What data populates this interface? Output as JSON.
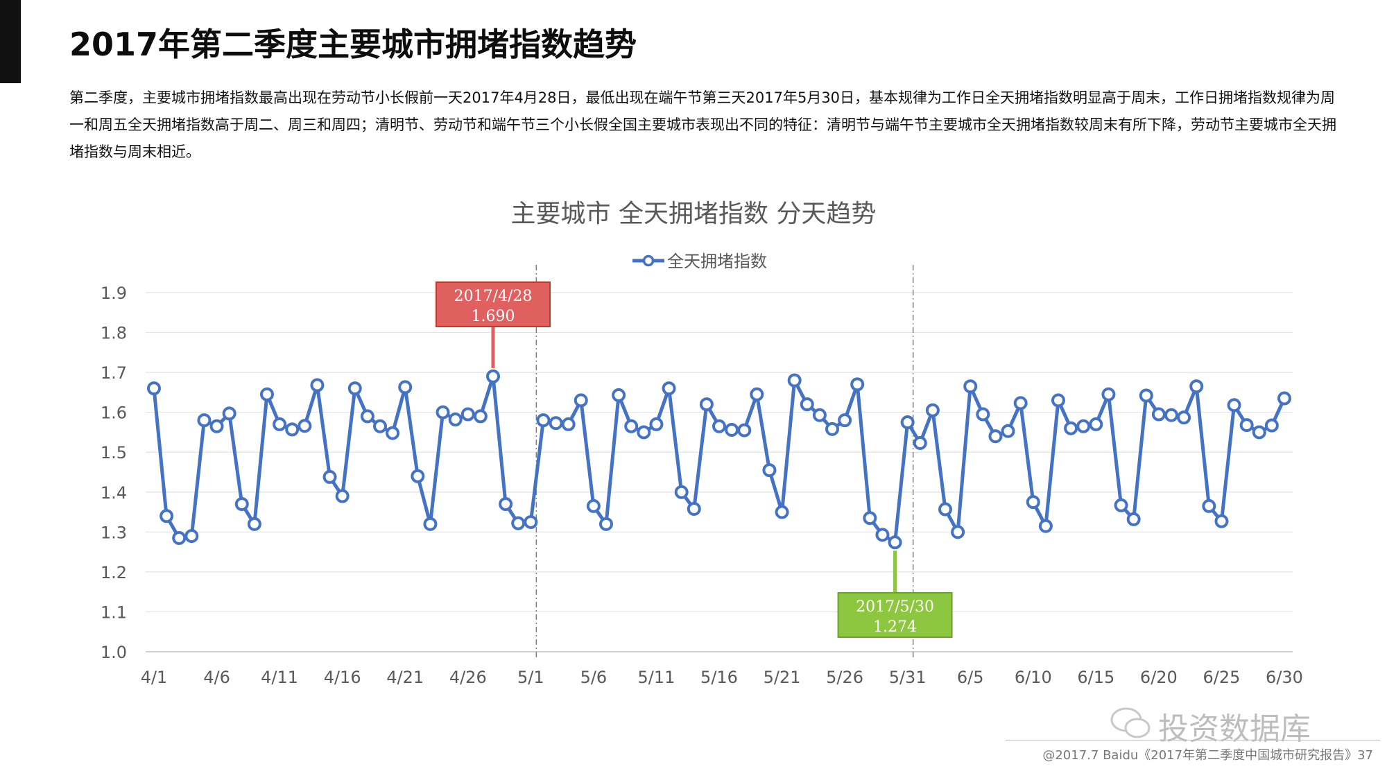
{
  "page": {
    "title": "2017年第二季度主要城市拥堵指数趋势",
    "summary": "第二季度，主要城市拥堵指数最高出现在劳动节小长假前一天2017年4月28日，最低出现在端午节第三天2017年5月30日，基本规律为工作日全天拥堵指数明显高于周末，工作日拥堵指数规律为周一和周五全天拥堵指数高于周二、周三和周四；清明节、劳动节和端午节三个小长假全国主要城市表现出不同的特征：清明节与端午节主要城市全天拥堵指数较周末有所下降，劳动节主要城市全天拥堵指数与周末相近。",
    "footer": "@2017.7 Baidu《2017年第二季度中国城市研究报告》37",
    "watermark": "投资数据库"
  },
  "chart_data": {
    "type": "line",
    "title": "主要城市 全天拥堵指数 分天趋势",
    "legend_position": "top",
    "grid": true,
    "ylim": [
      1.0,
      1.9
    ],
    "yticks": [
      "1.0",
      "1.1",
      "1.2",
      "1.3",
      "1.4",
      "1.5",
      "1.6",
      "1.7",
      "1.8",
      "1.9"
    ],
    "x_tick_labels": [
      "4/1",
      "4/6",
      "4/11",
      "4/16",
      "4/21",
      "4/26",
      "5/1",
      "5/6",
      "5/11",
      "5/16",
      "5/21",
      "5/26",
      "5/31",
      "6/5",
      "6/10",
      "6/15",
      "6/20",
      "6/25",
      "6/30"
    ],
    "x": [
      "4/1",
      "4/2",
      "4/3",
      "4/4",
      "4/5",
      "4/6",
      "4/7",
      "4/8",
      "4/9",
      "4/10",
      "4/11",
      "4/12",
      "4/13",
      "4/14",
      "4/15",
      "4/16",
      "4/17",
      "4/18",
      "4/19",
      "4/20",
      "4/21",
      "4/22",
      "4/23",
      "4/24",
      "4/25",
      "4/26",
      "4/27",
      "4/28",
      "4/29",
      "4/30",
      "5/1",
      "5/2",
      "5/3",
      "5/4",
      "5/5",
      "5/6",
      "5/7",
      "5/8",
      "5/9",
      "5/10",
      "5/11",
      "5/12",
      "5/13",
      "5/14",
      "5/15",
      "5/16",
      "5/17",
      "5/18",
      "5/19",
      "5/20",
      "5/21",
      "5/22",
      "5/23",
      "5/24",
      "5/25",
      "5/26",
      "5/27",
      "5/28",
      "5/29",
      "5/30",
      "5/31",
      "6/1",
      "6/2",
      "6/3",
      "6/4",
      "6/5",
      "6/6",
      "6/7",
      "6/8",
      "6/9",
      "6/10",
      "6/11",
      "6/12",
      "6/13",
      "6/14",
      "6/15",
      "6/16",
      "6/17",
      "6/18",
      "6/19",
      "6/20",
      "6/21",
      "6/22",
      "6/23",
      "6/24",
      "6/25",
      "6/26",
      "6/27",
      "6/28",
      "6/29",
      "6/30"
    ],
    "series": [
      {
        "name": "全天拥堵指数",
        "color": "#4472c4",
        "values": [
          1.66,
          1.34,
          1.285,
          1.29,
          1.58,
          1.565,
          1.597,
          1.37,
          1.32,
          1.645,
          1.57,
          1.557,
          1.566,
          1.668,
          1.438,
          1.39,
          1.66,
          1.59,
          1.565,
          1.548,
          1.663,
          1.44,
          1.32,
          1.6,
          1.582,
          1.595,
          1.59,
          1.69,
          1.37,
          1.322,
          1.325,
          1.58,
          1.573,
          1.57,
          1.63,
          1.365,
          1.32,
          1.643,
          1.565,
          1.55,
          1.57,
          1.66,
          1.4,
          1.358,
          1.62,
          1.565,
          1.556,
          1.555,
          1.645,
          1.455,
          1.35,
          1.68,
          1.62,
          1.593,
          1.558,
          1.58,
          1.67,
          1.335,
          1.293,
          1.274,
          1.575,
          1.523,
          1.605,
          1.357,
          1.3,
          1.665,
          1.595,
          1.54,
          1.553,
          1.623,
          1.375,
          1.315,
          1.63,
          1.56,
          1.565,
          1.57,
          1.645,
          1.367,
          1.332,
          1.642,
          1.595,
          1.593,
          1.587,
          1.665,
          1.365,
          1.327,
          1.618,
          1.568,
          1.55,
          1.567,
          1.635
        ]
      }
    ],
    "annotations": [
      {
        "date": "2017/4/28",
        "value": "1.690",
        "index": 27,
        "color": "#e06060",
        "border": "#c0392b",
        "side": "above"
      },
      {
        "date": "2017/5/30",
        "value": "1.274",
        "index": 59,
        "color": "#8dc63f",
        "border": "#6aa22a",
        "side": "below"
      }
    ],
    "dashed_separators": [
      "5/1",
      "5/31"
    ]
  }
}
